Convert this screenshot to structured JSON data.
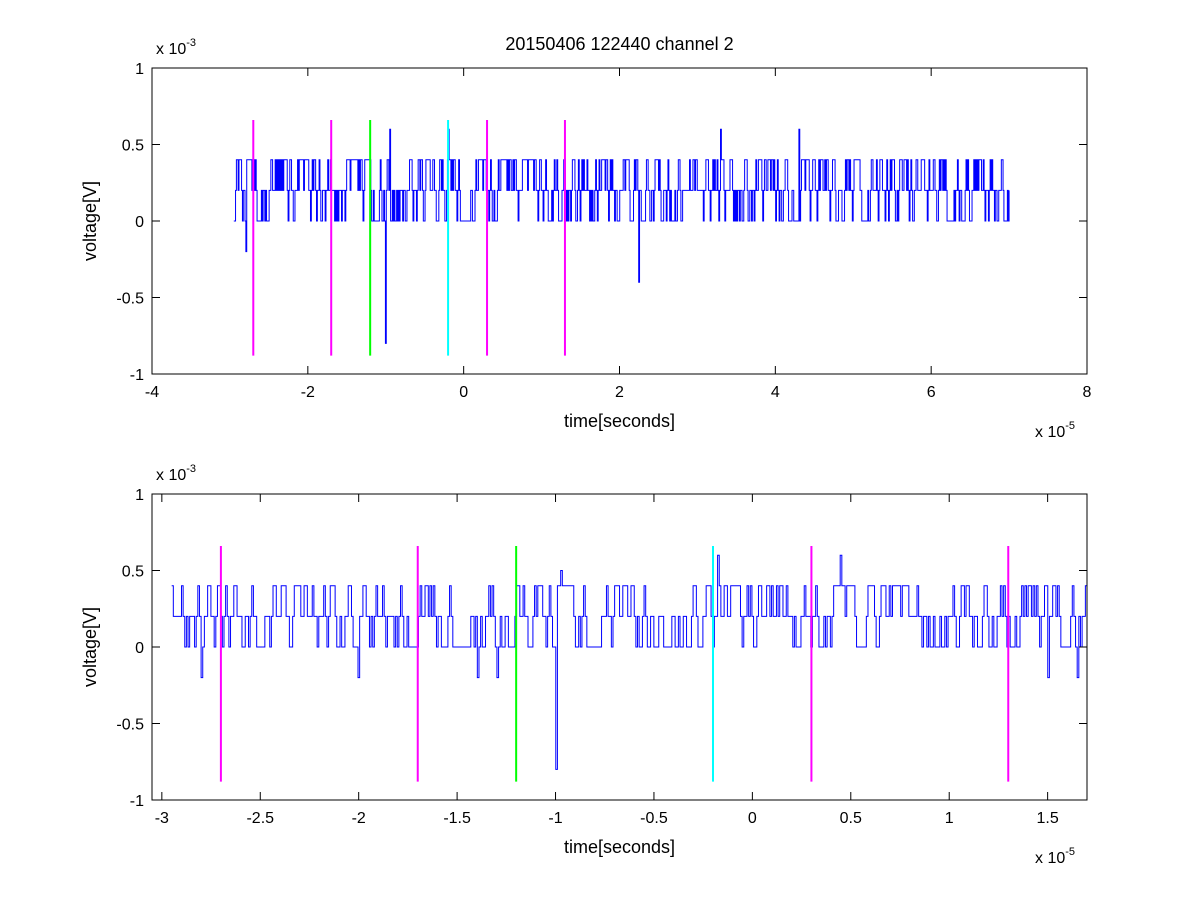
{
  "chart_data": [
    {
      "type": "line",
      "title": "20150406 122440 channel 2",
      "xlabel": "time[seconds]",
      "ylabel": "voltage[V]",
      "xlim": [
        -4e-05,
        8e-05
      ],
      "ylim": [
        -0.001,
        0.001
      ],
      "x_ticks": [
        -4e-05,
        -2e-05,
        0,
        2e-05,
        4e-05,
        6e-05,
        8e-05
      ],
      "x_tick_labels": [
        "-4",
        "-2",
        "0",
        "2",
        "4",
        "6",
        "8"
      ],
      "y_ticks": [
        -0.001,
        -0.0005,
        0,
        0.0005,
        0.001
      ],
      "y_tick_labels": [
        "-1",
        "-0.5",
        "0",
        "0.5",
        "1"
      ],
      "x_exponent": {
        "base": "x 10",
        "power": "-5"
      },
      "y_exponent": {
        "base": "x 10",
        "power": "-3"
      },
      "grid": false,
      "legend": "none",
      "series": [
        {
          "color": "#0000ff",
          "signal": {
            "x_start": -2.95e-05,
            "x_end": 7e-05,
            "levels": [
              -0.0008,
              -0.0004,
              -0.0002,
              0,
              0.0002,
              0.0004,
              0.0006
            ],
            "baseline": 0.0002,
            "spikes": [
              {
                "x": -2.8e-05,
                "y": -0.0002
              },
              {
                "x": -1e-05,
                "y": -0.0008
              },
              {
                "x": -9.5e-06,
                "y": 0.0006
              },
              {
                "x": -2e-06,
                "y": 0.0006
              },
              {
                "x": 2.25e-05,
                "y": -0.0004
              },
              {
                "x": 3.3e-05,
                "y": 0.0006
              },
              {
                "x": 4.3e-05,
                "y": 0.0006
              }
            ]
          }
        }
      ],
      "markers": [
        {
          "x": -2.7e-05,
          "color": "#ff00ff"
        },
        {
          "x": -1.7e-05,
          "color": "#ff00ff"
        },
        {
          "x": -1.2e-05,
          "color": "#00ff00"
        },
        {
          "x": -2e-06,
          "color": "#00ffff"
        },
        {
          "x": 3e-06,
          "color": "#ff00ff"
        },
        {
          "x": 1.3e-05,
          "color": "#ff00ff"
        }
      ],
      "marker_span": [
        -0.00088,
        0.00066
      ]
    },
    {
      "type": "line",
      "title": "",
      "xlabel": "time[seconds]",
      "ylabel": "voltage[V]",
      "xlim": [
        -3.05e-05,
        1.7e-05
      ],
      "ylim": [
        -0.001,
        0.001
      ],
      "x_ticks": [
        -3e-05,
        -2.5e-05,
        -2e-05,
        -1.5e-05,
        -1e-05,
        -5e-06,
        0,
        5e-06,
        1e-05,
        1.5e-05
      ],
      "x_tick_labels": [
        "-3",
        "-2.5",
        "-2",
        "-1.5",
        "-1",
        "-0.5",
        "0",
        "0.5",
        "1",
        "1.5"
      ],
      "y_ticks": [
        -0.001,
        -0.0005,
        0,
        0.0005,
        0.001
      ],
      "y_tick_labels": [
        "-1",
        "-0.5",
        "0",
        "0.5",
        "1"
      ],
      "x_exponent": {
        "base": "x 10",
        "power": "-5"
      },
      "y_exponent": {
        "base": "x 10",
        "power": "-3"
      },
      "grid": false,
      "legend": "none",
      "series": [
        {
          "color": "#0000ff",
          "signal": {
            "x_start": -2.95e-05,
            "x_end": 1.7e-05,
            "levels": [
              -0.0008,
              -0.0002,
              0,
              0.0002,
              0.0004,
              0.0006
            ],
            "baseline": 0.0002,
            "spikes": [
              {
                "x": -2.8e-05,
                "y": -0.0002
              },
              {
                "x": -2e-05,
                "y": -0.0002
              },
              {
                "x": -1.4e-05,
                "y": -0.0002
              },
              {
                "x": -1.3e-05,
                "y": -0.0002
              },
              {
                "x": -1e-05,
                "y": -0.0008
              },
              {
                "x": -9.7e-06,
                "y": 0.0005
              },
              {
                "x": -1.8e-06,
                "y": 0.0006
              },
              {
                "x": 4.5e-06,
                "y": 0.0006
              },
              {
                "x": 1.5e-05,
                "y": -0.0002
              },
              {
                "x": 1.65e-05,
                "y": -0.0002
              }
            ]
          }
        }
      ],
      "markers": [
        {
          "x": -2.7e-05,
          "color": "#ff00ff"
        },
        {
          "x": -1.7e-05,
          "color": "#ff00ff"
        },
        {
          "x": -1.2e-05,
          "color": "#00ff00"
        },
        {
          "x": -2e-06,
          "color": "#00ffff"
        },
        {
          "x": 3e-06,
          "color": "#ff00ff"
        },
        {
          "x": 1.3e-05,
          "color": "#ff00ff"
        }
      ],
      "marker_span": [
        -0.00088,
        0.00066
      ]
    }
  ]
}
